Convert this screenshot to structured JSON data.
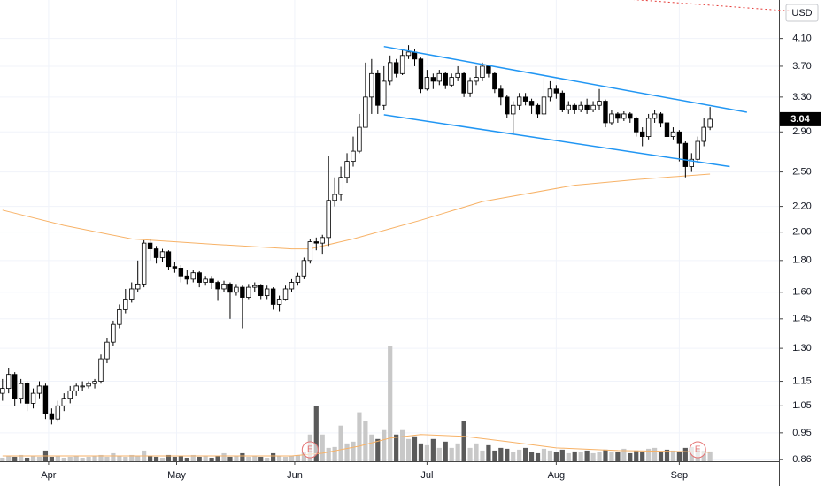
{
  "chart_data": {
    "type": "candlestick",
    "currency": "USD",
    "log_scale": true,
    "grid": true,
    "ylim": [
      0.855,
      4.73
    ],
    "yticks": [
      {
        "value": 4.1,
        "label": "4.10"
      },
      {
        "value": 3.7,
        "label": "3.70"
      },
      {
        "value": 3.3,
        "label": "3.30"
      },
      {
        "value": 2.9,
        "label": "2.90"
      },
      {
        "value": 2.5,
        "label": "2.50"
      },
      {
        "value": 2.2,
        "label": "2.20"
      },
      {
        "value": 2.0,
        "label": "2.00"
      },
      {
        "value": 1.8,
        "label": "1.80"
      },
      {
        "value": 1.6,
        "label": "1.60"
      },
      1.45,
      {
        "value": 1.3,
        "label": "1.30"
      },
      1.15,
      1.05,
      0.95,
      0.86
    ],
    "xlim": [
      -0.4,
      126.2
    ],
    "xticks": [
      {
        "value": 7.5,
        "label": "Apr"
      },
      {
        "value": 28.3,
        "label": "May"
      },
      {
        "value": 47.5,
        "label": "Jun"
      },
      {
        "value": 69,
        "label": "Jul"
      },
      {
        "value": 90,
        "label": "Aug"
      },
      {
        "value": 110,
        "label": "Sep"
      }
    ],
    "up_color": "#ffffff",
    "down_color": "#000000",
    "candles": {
      "open": [
        1.1,
        1.12,
        1.18,
        1.08,
        1.14,
        1.06,
        1.1,
        1.13,
        1.02,
        1.0,
        1.05,
        1.08,
        1.11,
        1.13,
        1.13,
        1.14,
        1.15,
        1.25,
        1.33,
        1.42,
        1.5,
        1.56,
        1.62,
        1.65,
        1.92,
        1.88,
        1.82,
        1.86,
        1.76,
        1.75,
        1.7,
        1.68,
        1.72,
        1.66,
        1.68,
        1.66,
        1.62,
        1.65,
        1.6,
        1.63,
        1.57,
        1.63,
        1.64,
        1.58,
        1.62,
        1.53,
        1.56,
        1.62,
        1.66,
        1.7,
        1.8,
        1.93,
        1.92,
        1.96,
        2.25,
        2.3,
        2.45,
        2.6,
        2.7,
        2.95,
        3.3,
        3.6,
        3.2,
        3.5,
        3.75,
        3.6,
        3.85,
        3.9,
        3.8,
        3.4,
        3.55,
        3.5,
        3.6,
        3.45,
        3.55,
        3.6,
        3.35,
        3.5,
        3.55,
        3.7,
        3.6,
        3.4,
        3.3,
        3.1,
        3.2,
        3.3,
        3.25,
        3.2,
        3.1,
        3.3,
        3.4,
        3.35,
        3.15,
        3.2,
        3.15,
        3.2,
        3.15,
        3.2,
        3.25,
        3.0,
        3.1,
        3.05,
        3.1,
        3.05,
        2.9,
        2.85,
        3.05,
        3.1,
        3.0,
        2.85,
        2.9,
        2.78,
        2.55,
        2.62,
        2.8,
        2.95
      ],
      "high": [
        1.16,
        1.21,
        1.19,
        1.16,
        1.15,
        1.12,
        1.15,
        1.14,
        1.04,
        1.07,
        1.1,
        1.13,
        1.14,
        1.15,
        1.15,
        1.16,
        1.27,
        1.35,
        1.44,
        1.53,
        1.62,
        1.66,
        1.8,
        1.94,
        1.95,
        1.9,
        1.88,
        1.87,
        1.79,
        1.77,
        1.74,
        1.74,
        1.73,
        1.7,
        1.7,
        1.67,
        1.67,
        1.66,
        1.65,
        1.64,
        1.65,
        1.66,
        1.65,
        1.64,
        1.63,
        1.58,
        1.64,
        1.68,
        1.72,
        1.82,
        1.95,
        1.96,
        1.98,
        2.65,
        2.45,
        2.55,
        2.68,
        2.85,
        3.1,
        3.75,
        3.8,
        3.65,
        3.7,
        3.85,
        3.8,
        3.95,
        4.0,
        3.95,
        3.82,
        3.65,
        3.6,
        3.65,
        3.62,
        3.6,
        3.7,
        3.62,
        3.55,
        3.7,
        3.75,
        3.72,
        3.62,
        3.45,
        3.32,
        3.25,
        3.35,
        3.35,
        3.28,
        3.22,
        3.55,
        3.5,
        3.45,
        3.38,
        3.25,
        3.22,
        3.25,
        3.28,
        3.25,
        3.4,
        3.27,
        3.15,
        3.12,
        3.13,
        3.12,
        3.07,
        2.95,
        3.1,
        3.15,
        3.12,
        3.02,
        2.95,
        2.92,
        2.8,
        2.68,
        2.85,
        3.05,
        3.18
      ],
      "low": [
        1.07,
        1.1,
        1.05,
        1.06,
        1.03,
        1.04,
        1.08,
        1.0,
        0.98,
        0.99,
        1.03,
        1.06,
        1.09,
        1.11,
        1.12,
        1.12,
        1.14,
        1.23,
        1.31,
        1.4,
        1.48,
        1.54,
        1.6,
        1.63,
        1.8,
        1.78,
        1.79,
        1.74,
        1.72,
        1.66,
        1.65,
        1.66,
        1.63,
        1.64,
        1.62,
        1.55,
        1.6,
        1.45,
        1.58,
        1.4,
        1.56,
        1.6,
        1.56,
        1.56,
        1.5,
        1.49,
        1.55,
        1.6,
        1.64,
        1.68,
        1.78,
        1.87,
        1.84,
        1.9,
        2.2,
        2.25,
        2.4,
        2.55,
        2.68,
        2.95,
        3.1,
        3.1,
        3.15,
        3.45,
        3.55,
        3.58,
        3.8,
        3.7,
        3.35,
        3.38,
        3.4,
        3.45,
        3.4,
        3.42,
        3.5,
        3.3,
        3.3,
        3.45,
        3.5,
        3.55,
        3.35,
        3.2,
        3.05,
        2.88,
        3.15,
        3.2,
        3.1,
        3.05,
        3.08,
        3.25,
        3.28,
        3.12,
        3.1,
        3.1,
        3.12,
        3.1,
        3.12,
        3.15,
        2.95,
        2.98,
        3.0,
        3.02,
        3.0,
        2.85,
        2.75,
        2.82,
        3.0,
        2.95,
        2.8,
        2.82,
        2.6,
        2.45,
        2.5,
        2.58,
        2.75,
        2.92
      ],
      "close": [
        1.12,
        1.18,
        1.08,
        1.14,
        1.06,
        1.1,
        1.13,
        1.02,
        1.0,
        1.05,
        1.08,
        1.11,
        1.13,
        1.13,
        1.14,
        1.15,
        1.25,
        1.33,
        1.42,
        1.5,
        1.56,
        1.62,
        1.65,
        1.92,
        1.88,
        1.82,
        1.86,
        1.76,
        1.75,
        1.7,
        1.68,
        1.72,
        1.66,
        1.68,
        1.66,
        1.62,
        1.65,
        1.6,
        1.63,
        1.57,
        1.63,
        1.64,
        1.58,
        1.62,
        1.53,
        1.56,
        1.62,
        1.66,
        1.7,
        1.8,
        1.93,
        1.92,
        1.96,
        2.25,
        2.3,
        2.45,
        2.6,
        2.7,
        2.95,
        3.3,
        3.6,
        3.2,
        3.5,
        3.75,
        3.6,
        3.85,
        3.9,
        3.8,
        3.4,
        3.55,
        3.5,
        3.6,
        3.45,
        3.55,
        3.6,
        3.35,
        3.5,
        3.55,
        3.7,
        3.6,
        3.4,
        3.3,
        3.1,
        3.2,
        3.3,
        3.25,
        3.2,
        3.1,
        3.3,
        3.4,
        3.35,
        3.15,
        3.2,
        3.15,
        3.2,
        3.15,
        3.2,
        3.25,
        3.0,
        3.1,
        3.05,
        3.1,
        3.05,
        2.9,
        2.85,
        3.05,
        3.1,
        3.0,
        2.85,
        2.9,
        2.78,
        2.55,
        2.62,
        2.8,
        2.95,
        3.04
      ],
      "volume": [
        40,
        60,
        50,
        70,
        40,
        60,
        50,
        120,
        50,
        60,
        40,
        50,
        60,
        40,
        50,
        60,
        70,
        50,
        90,
        60,
        50,
        70,
        60,
        120,
        60,
        50,
        40,
        70,
        50,
        60,
        40,
        70,
        50,
        60,
        40,
        60,
        90,
        50,
        60,
        90,
        50,
        60,
        50,
        40,
        90,
        60,
        50,
        60,
        70,
        100,
        300,
        620,
        300,
        150,
        160,
        400,
        200,
        220,
        550,
        450,
        300,
        250,
        350,
        1290,
        300,
        350,
        250,
        280,
        200,
        180,
        250,
        150,
        220,
        150,
        200,
        450,
        150,
        200,
        120,
        180,
        120,
        150,
        140,
        100,
        130,
        150,
        100,
        90,
        140,
        120,
        100,
        130,
        90,
        110,
        100,
        120,
        90,
        100,
        130,
        110,
        100,
        140,
        90,
        120,
        110,
        140,
        150,
        100,
        130,
        120,
        110,
        150,
        160,
        140,
        120,
        110
      ]
    },
    "volume_up_color": "#c8c8c8",
    "volume_down_color": "#5a5a5a",
    "moving_average": {
      "color": "#f7b267",
      "x": [
        0,
        10,
        21,
        35,
        47,
        50,
        57,
        68,
        78,
        93,
        103,
        115
      ],
      "values": [
        2.17,
        2.05,
        1.95,
        1.91,
        1.88,
        1.88,
        1.95,
        2.09,
        2.24,
        2.38,
        2.43,
        2.48
      ]
    },
    "volume_average": {
      "color": "#f7b267",
      "x": [
        0,
        47,
        52,
        58,
        63,
        68,
        75,
        82,
        90,
        100,
        110,
        115
      ],
      "values": [
        60,
        60,
        90,
        170,
        260,
        300,
        280,
        220,
        150,
        120,
        110,
        100
      ]
    },
    "trendlines": [
      {
        "color": "#2196f3",
        "x": [
          62,
          121
        ],
        "values": [
          3.98,
          3.12
        ]
      },
      {
        "color": "#2196f3",
        "x": [
          62,
          118.2
        ],
        "values": [
          3.09,
          2.55
        ]
      },
      {
        "color": "#e53935",
        "x": [
          101,
          128
        ],
        "values": [
          4.75,
          4.54
        ],
        "dotted": true
      }
    ],
    "events": [
      {
        "x": 50,
        "label": "E"
      },
      {
        "x": 113,
        "label": "E"
      }
    ]
  }
}
